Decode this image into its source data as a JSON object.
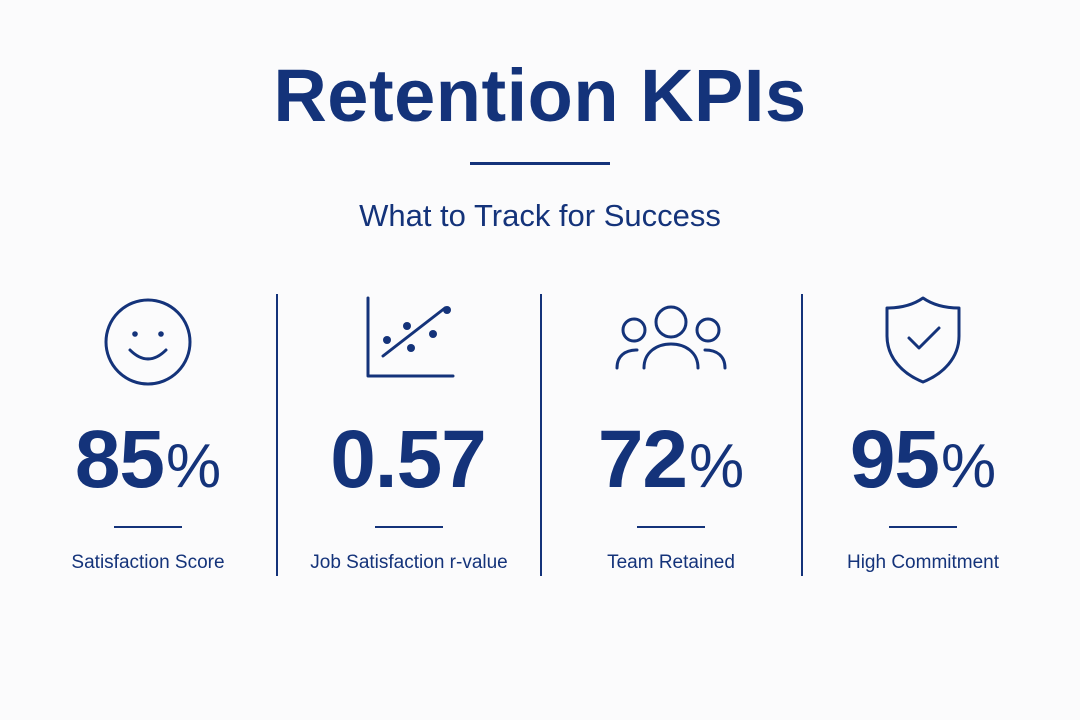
{
  "header": {
    "title": "Retention KPIs",
    "subtitle": "What to Track for Success"
  },
  "kpis": [
    {
      "value": "85",
      "unit": "%",
      "label": "Satisfaction Score",
      "icon": "smiley-face-icon"
    },
    {
      "value": "0.57",
      "unit": "",
      "label": "Job Satisfaction r-value",
      "icon": "scatter-trend-icon"
    },
    {
      "value": "72",
      "unit": "%",
      "label": "Team Retained",
      "icon": "team-group-icon"
    },
    {
      "value": "95",
      "unit": "%",
      "label": "High Commitment",
      "icon": "shield-check-icon"
    }
  ],
  "colors": {
    "primary": "#14337a",
    "background": "#fbfbfc"
  }
}
